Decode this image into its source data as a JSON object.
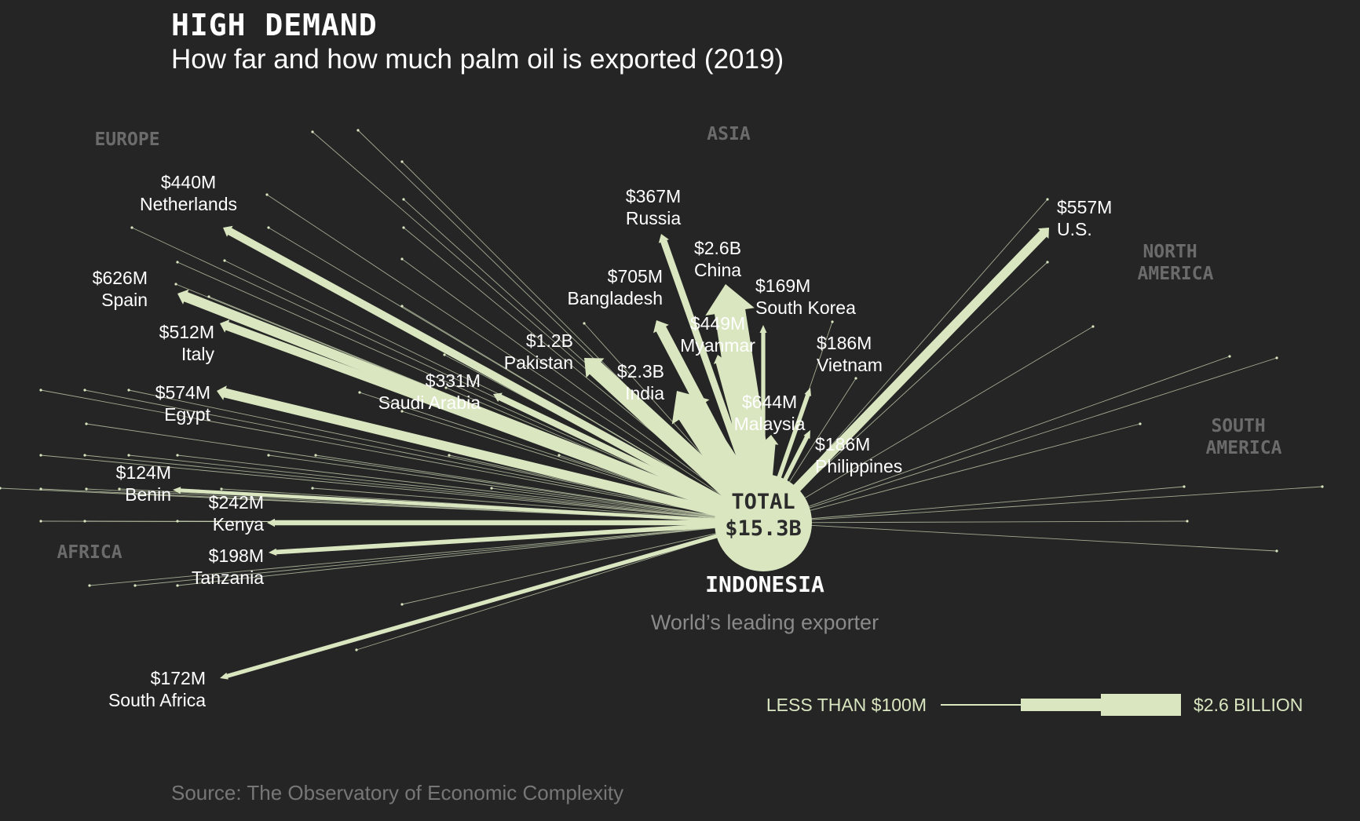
{
  "heading": "HIGH DEMAND",
  "subtitle": "How far and how much palm oil is exported (2019)",
  "source": "Source: The Observatory of Economic Complexity",
  "colors": {
    "background": "#252525",
    "accent": "#d9e6c0",
    "muted": "#6b6b6b"
  },
  "chart_data": {
    "type": "flow-map",
    "origin": {
      "country": "INDONESIA",
      "total_label": "TOTAL",
      "total_value_label": "$15.3B",
      "total_value_usd": 15300000000,
      "caption": "World’s leading exporter"
    },
    "regions": [
      "EUROPE",
      "ASIA",
      "NORTH AMERICA",
      "SOUTH AMERICA",
      "AFRICA"
    ],
    "flows": [
      {
        "country": "Netherlands",
        "value_label": "$440M",
        "value": 440,
        "region": "EUROPE"
      },
      {
        "country": "Spain",
        "value_label": "$626M",
        "value": 626,
        "region": "EUROPE"
      },
      {
        "country": "Italy",
        "value_label": "$512M",
        "value": 512,
        "region": "EUROPE"
      },
      {
        "country": "Russia",
        "value_label": "$367M",
        "value": 367,
        "region": "EUROPE"
      },
      {
        "country": "China",
        "value_label": "$2.6B",
        "value": 2600,
        "region": "ASIA"
      },
      {
        "country": "South Korea",
        "value_label": "$169M",
        "value": 169,
        "region": "ASIA"
      },
      {
        "country": "Bangladesh",
        "value_label": "$705M",
        "value": 705,
        "region": "ASIA"
      },
      {
        "country": "Myanmar",
        "value_label": "$449M",
        "value": 449,
        "region": "ASIA"
      },
      {
        "country": "Vietnam",
        "value_label": "$186M",
        "value": 186,
        "region": "ASIA"
      },
      {
        "country": "Pakistan",
        "value_label": "$1.2B",
        "value": 1200,
        "region": "ASIA"
      },
      {
        "country": "India",
        "value_label": "$2.3B",
        "value": 2300,
        "region": "ASIA"
      },
      {
        "country": "Saudi Arabia",
        "value_label": "$331M",
        "value": 331,
        "region": "ASIA"
      },
      {
        "country": "Malaysia",
        "value_label": "$644M",
        "value": 644,
        "region": "ASIA"
      },
      {
        "country": "Philippines",
        "value_label": "$186M",
        "value": 186,
        "region": "ASIA"
      },
      {
        "country": "U.S.",
        "value_label": "$557M",
        "value": 557,
        "region": "NORTH AMERICA"
      },
      {
        "country": "Egypt",
        "value_label": "$574M",
        "value": 574,
        "region": "AFRICA"
      },
      {
        "country": "Benin",
        "value_label": "$124M",
        "value": 124,
        "region": "AFRICA"
      },
      {
        "country": "Kenya",
        "value_label": "$242M",
        "value": 242,
        "region": "AFRICA"
      },
      {
        "country": "Tanzania",
        "value_label": "$198M",
        "value": 198,
        "region": "AFRICA"
      },
      {
        "country": "South Africa",
        "value_label": "$172M",
        "value": 172,
        "region": "AFRICA"
      }
    ],
    "value_unit": "USD millions",
    "legend": {
      "min_label": "LESS THAN $100M",
      "max_label": "$2.6 BILLION"
    }
  }
}
